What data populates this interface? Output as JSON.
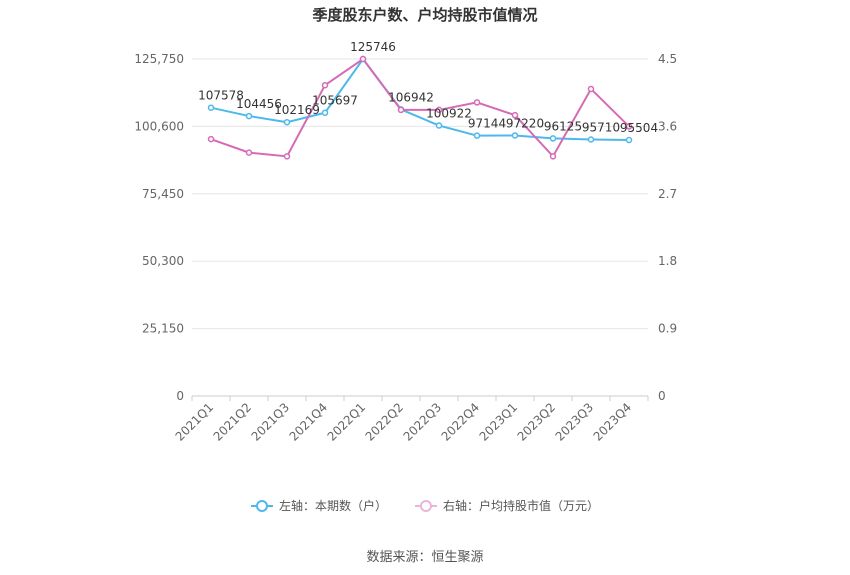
{
  "chart_data": {
    "type": "line",
    "title": "季度股东户数、户均持股市值情况",
    "categories": [
      "2021Q1",
      "2021Q2",
      "2021Q3",
      "2021Q4",
      "2022Q1",
      "2022Q2",
      "2022Q3",
      "2022Q4",
      "2023Q1",
      "2023Q2",
      "2023Q3",
      "2023Q4"
    ],
    "series": [
      {
        "name": "左轴：本期数（户）",
        "axis": "left",
        "color": "#4db8ec",
        "values": [
          107578,
          104456,
          102169,
          105697,
          125746,
          106942,
          100922,
          97144,
          97220,
          96125,
          95710,
          95504
        ],
        "labels": [
          "107578",
          "104456",
          "102169",
          "105697",
          "125746",
          "106942",
          "100922",
          "97144",
          "97220",
          "96125",
          "95710",
          "95504"
        ]
      },
      {
        "name": "右轴：户均持股市值（万元）",
        "axis": "right",
        "color": "#d66bb5",
        "values": [
          3.43,
          3.25,
          3.2,
          4.15,
          4.5,
          3.82,
          3.82,
          3.92,
          3.75,
          3.2,
          4.1,
          3.6
        ]
      }
    ],
    "left_axis": {
      "ticks": [
        0,
        25150,
        50300,
        75450,
        100600,
        125750
      ],
      "tick_labels": [
        "0",
        "25,150",
        "50,300",
        "75,450",
        "100,600",
        "125,750"
      ],
      "ylim": [
        0,
        125750
      ]
    },
    "right_axis": {
      "ticks": [
        0,
        0.9,
        1.8,
        2.7,
        3.6,
        4.5
      ],
      "tick_labels": [
        "0",
        "0.9",
        "1.8",
        "2.7",
        "3.6",
        "4.5"
      ],
      "ylim": [
        0,
        4.5
      ]
    },
    "grid": true,
    "legend_position": "bottom"
  },
  "source": "数据来源：恒生聚源"
}
